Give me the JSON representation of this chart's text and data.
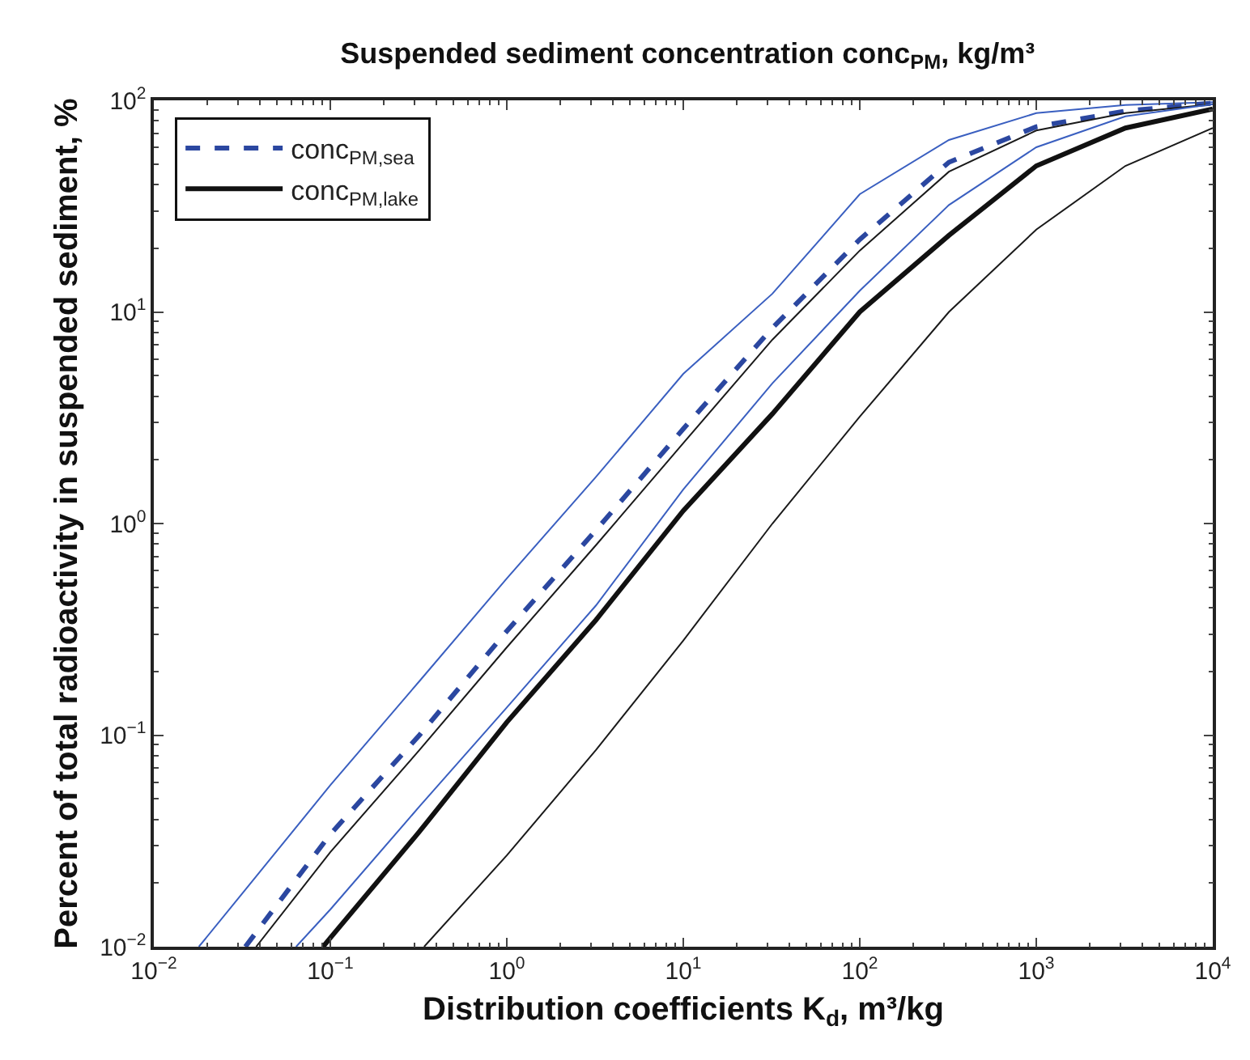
{
  "chart_data": {
    "type": "line",
    "title": "Suspended sediment concentration conc$_{PM}$, kg/m³",
    "xlabel": "Distribution coefficients K$_{d}$, m³/kg",
    "ylabel": "Percent of total radioactivity in suspended sediment, %",
    "log": "xy",
    "grid": false,
    "legend": "top left",
    "marker": "none",
    "xlim": [
      0.01,
      10000
    ],
    "ylim": [
      0.01,
      100
    ],
    "xticks": [
      {
        "value": 0.01,
        "label": "10$^{−2}$"
      },
      {
        "value": 0.1,
        "label": "10$^{−1}$"
      },
      {
        "value": 1,
        "label": "10$^{0}$"
      },
      {
        "value": 10,
        "label": "10$^{1}$"
      },
      {
        "value": 100,
        "label": "10$^{2}$"
      },
      {
        "value": 1000,
        "label": "10$^{3}$"
      },
      {
        "value": 10000,
        "label": "10$^{4}$"
      }
    ],
    "yticks": [
      {
        "value": 0.01,
        "label": "10$^{−2}$"
      },
      {
        "value": 0.1,
        "label": "10$^{−1}$"
      },
      {
        "value": 1,
        "label": "10$^{0}$"
      },
      {
        "value": 10,
        "label": "10$^{1}$"
      },
      {
        "value": 100,
        "label": "10$^{2}$"
      }
    ],
    "series": [
      {
        "color": "#3a5fc0",
        "line_style": "solid",
        "x": [
          0.018,
          0.032,
          0.1,
          0.32,
          1,
          3.2,
          10,
          32,
          100,
          320,
          1000,
          3200,
          10000
        ],
        "values": [
          0.01,
          0.018,
          0.058,
          0.18,
          0.55,
          1.66,
          5.1,
          12.2,
          36,
          65,
          87,
          95,
          98
        ]
      },
      {
        "name": "conc$_{PM,sea}$",
        "color": "#2b47a0",
        "line_style": "dashed",
        "x": [
          0.033,
          0.1,
          0.32,
          1,
          3.2,
          10,
          32,
          100,
          320,
          1000,
          3200,
          10000
        ],
        "values": [
          0.01,
          0.034,
          0.1,
          0.31,
          0.93,
          2.8,
          8.4,
          22,
          51,
          75,
          89,
          97
        ]
      },
      {
        "color": "#1a1a1a",
        "line_style": "solid",
        "x": [
          0.038,
          0.1,
          0.32,
          1,
          3.2,
          10,
          32,
          100,
          320,
          1000,
          3200,
          10000
        ],
        "values": [
          0.01,
          0.028,
          0.085,
          0.26,
          0.79,
          2.4,
          7.4,
          19.5,
          46,
          72,
          87,
          96
        ]
      },
      {
        "color": "#3a5fc0",
        "line_style": "solid",
        "x": [
          0.064,
          0.1,
          0.32,
          1,
          3.2,
          10,
          32,
          100,
          320,
          1000,
          3200,
          10000
        ],
        "values": [
          0.01,
          0.015,
          0.046,
          0.135,
          0.41,
          1.45,
          4.6,
          12.6,
          32,
          60,
          84,
          96
        ]
      },
      {
        "name": "conc$_{PM,lake}$",
        "color": "#111111",
        "line_style": "solid",
        "x": [
          0.091,
          0.1,
          0.32,
          1,
          3.2,
          10,
          32,
          100,
          320,
          1000,
          3200,
          10000
        ],
        "values": [
          0.01,
          0.011,
          0.035,
          0.115,
          0.35,
          1.15,
          3.3,
          10,
          23,
          49,
          74,
          91
        ]
      },
      {
        "color": "#1a1a1a",
        "line_style": "solid",
        "x": [
          0.34,
          1,
          3.2,
          10,
          32,
          100,
          320,
          1000,
          3200,
          10000
        ],
        "values": [
          0.01,
          0.027,
          0.085,
          0.28,
          1.0,
          3.2,
          10,
          24.5,
          49,
          74
        ]
      }
    ]
  }
}
